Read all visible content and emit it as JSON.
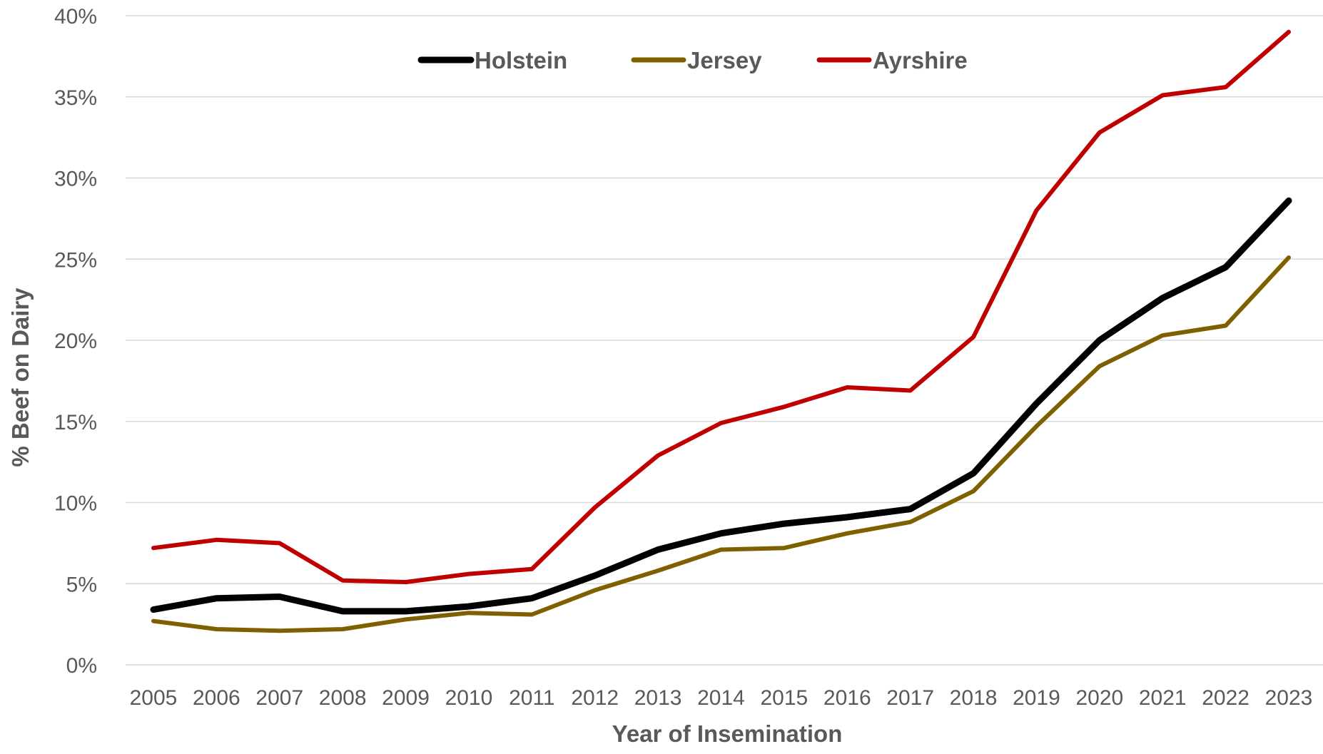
{
  "chart_data": {
    "type": "line",
    "title": "",
    "xlabel": "Year of Insemination",
    "ylabel": "% Beef on Dairy",
    "x": [
      "2005",
      "2006",
      "2007",
      "2008",
      "2009",
      "2010",
      "2011",
      "2012",
      "2013",
      "2014",
      "2015",
      "2016",
      "2017",
      "2018",
      "2019",
      "2020",
      "2021",
      "2022",
      "2023"
    ],
    "ylim": [
      0,
      40
    ],
    "yticks": [
      0,
      5,
      10,
      15,
      20,
      25,
      30,
      35,
      40
    ],
    "ytick_labels": [
      "0%",
      "5%",
      "10%",
      "15%",
      "20%",
      "25%",
      "30%",
      "35%",
      "40%"
    ],
    "grid": true,
    "legend_position": "top",
    "series": [
      {
        "name": "Holstein",
        "color": "#000000",
        "values": [
          3.4,
          4.1,
          4.2,
          3.3,
          3.3,
          3.6,
          4.1,
          5.5,
          7.1,
          8.1,
          8.7,
          9.1,
          9.6,
          11.8,
          16.1,
          20.0,
          22.6,
          24.5,
          28.6
        ]
      },
      {
        "name": "Jersey",
        "color": "#7f6000",
        "values": [
          2.7,
          2.2,
          2.1,
          2.2,
          2.8,
          3.2,
          3.1,
          4.6,
          5.8,
          7.1,
          7.2,
          8.1,
          8.8,
          10.7,
          14.7,
          18.4,
          20.3,
          20.9,
          25.1
        ]
      },
      {
        "name": "Ayrshire",
        "color": "#c00000",
        "values": [
          7.2,
          7.7,
          7.5,
          5.2,
          5.1,
          5.6,
          5.9,
          9.7,
          12.9,
          14.9,
          15.9,
          17.1,
          16.9,
          20.2,
          28.0,
          32.8,
          35.1,
          35.6,
          39.0
        ]
      }
    ]
  }
}
